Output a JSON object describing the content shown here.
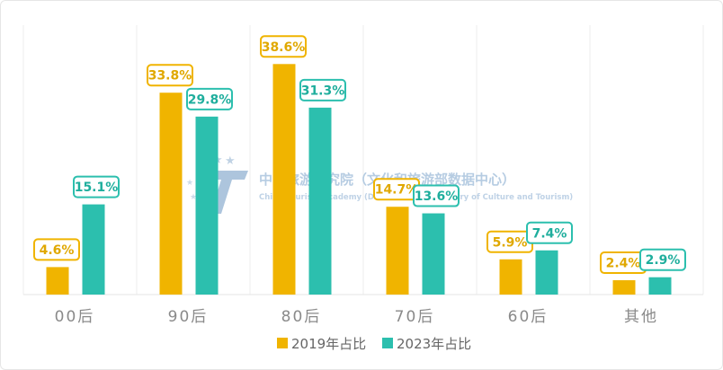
{
  "chart_data": {
    "type": "bar",
    "categories": [
      "00后",
      "90后",
      "80后",
      "70后",
      "60后",
      "其他"
    ],
    "series": [
      {
        "name": "2019年占比",
        "values": [
          4.6,
          33.8,
          38.6,
          14.7,
          5.9,
          2.4
        ],
        "labels": [
          "4.6%",
          "33.8%",
          "38.6%",
          "14.7%",
          "5.9%",
          "2.4%"
        ],
        "color": "#f0b400"
      },
      {
        "name": "2023年占比",
        "values": [
          15.1,
          29.8,
          31.3,
          13.6,
          7.4,
          2.9
        ],
        "labels": [
          "15.1%",
          "29.8%",
          "31.3%",
          "13.6%",
          "7.4%",
          "2.9%"
        ],
        "color": "#2cbfae"
      }
    ],
    "ylim": [
      0,
      42
    ],
    "grid": "vertical-separators",
    "legend_position": "bottom-center",
    "title": "",
    "xlabel": "",
    "ylabel": ""
  },
  "watermark": {
    "title": "中国旅游研究院（文化和旅游部数据中心）",
    "subtitle": "China Tourism Academy (Data Center of Ministry of Culture and Tourism)",
    "logo_letter": "T"
  }
}
